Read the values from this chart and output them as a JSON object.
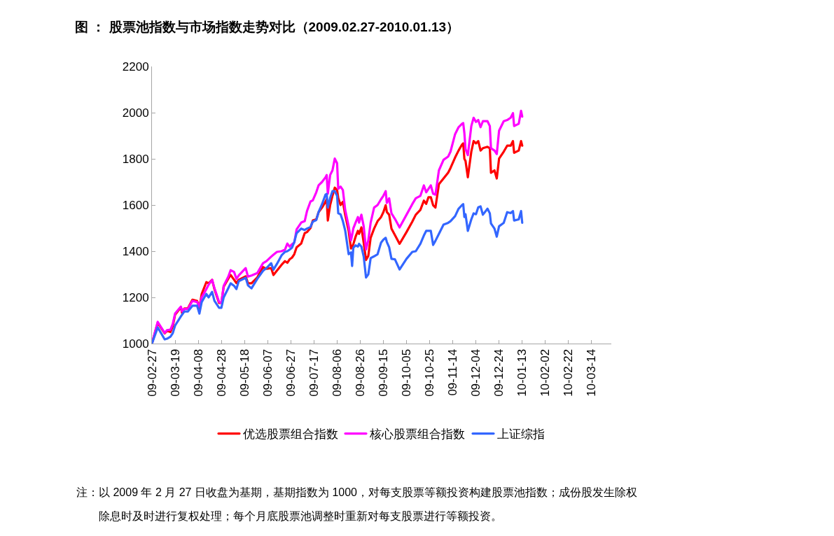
{
  "chart_data": {
    "type": "line",
    "title": "图 ： 股票池指数与市场指数走势对比（2009.02.27-2010.01.13）",
    "x": [
      "2009-02-27",
      "2009-03-04",
      "2009-03-10",
      "2009-03-12",
      "2009-03-15",
      "2009-03-17",
      "2009-03-19",
      "2009-03-24",
      "2009-03-25",
      "2009-03-27",
      "2009-03-30",
      "2009-04-03",
      "2009-04-07",
      "2009-04-09",
      "2009-04-11",
      "2009-04-15",
      "2009-04-17",
      "2009-04-20",
      "2009-04-22",
      "2009-04-26",
      "2009-04-28",
      "2009-04-30",
      "2009-05-04",
      "2009-05-06",
      "2009-05-09",
      "2009-05-11",
      "2009-05-13",
      "2009-05-19",
      "2009-05-21",
      "2009-05-24",
      "2009-05-29",
      "2009-06-03",
      "2009-06-06",
      "2009-06-10",
      "2009-06-12",
      "2009-06-15",
      "2009-06-19",
      "2009-06-22",
      "2009-06-24",
      "2009-06-26",
      "2009-06-28",
      "2009-06-30",
      "2009-07-02",
      "2009-07-06",
      "2009-07-09",
      "2009-07-11",
      "2009-07-14",
      "2009-07-16",
      "2009-07-19",
      "2009-07-21",
      "2009-07-24",
      "2009-07-27",
      "2009-07-28",
      "2009-07-29",
      "2009-07-31",
      "2009-08-02",
      "2009-08-04",
      "2009-08-06",
      "2009-08-07",
      "2009-08-09",
      "2009-08-11",
      "2009-08-13",
      "2009-08-16",
      "2009-08-18",
      "2009-08-19",
      "2009-08-20",
      "2009-08-22",
      "2009-08-24",
      "2009-08-25",
      "2009-08-27",
      "2009-08-29",
      "2009-08-31",
      "2009-09-02",
      "2009-09-04",
      "2009-09-07",
      "2009-09-10",
      "2009-09-13",
      "2009-09-15",
      "2009-09-17",
      "2009-09-18",
      "2009-09-20",
      "2009-09-22",
      "2009-09-25",
      "2009-09-29",
      "2009-10-05",
      "2009-10-10",
      "2009-10-13",
      "2009-10-17",
      "2009-10-20",
      "2009-10-22",
      "2009-10-24",
      "2009-10-26",
      "2009-10-28",
      "2009-10-30",
      "2009-11-02",
      "2009-11-06",
      "2009-11-10",
      "2009-11-12",
      "2009-11-16",
      "2009-11-19",
      "2009-11-22",
      "2009-11-23",
      "2009-11-24",
      "2009-11-25",
      "2009-11-27",
      "2009-11-30",
      "2009-12-02",
      "2009-12-04",
      "2009-12-06",
      "2009-12-08",
      "2009-12-10",
      "2009-12-14",
      "2009-12-16",
      "2009-12-17",
      "2009-12-20",
      "2009-12-22",
      "2009-12-24",
      "2009-12-28",
      "2009-12-31",
      "2010-01-03",
      "2010-01-05",
      "2010-01-06",
      "2010-01-10",
      "2010-01-12",
      "2010-01-13"
    ],
    "series": [
      {
        "name": "优选股票组合指数",
        "color": "#ff0000",
        "values": [
          1000,
          1090,
          1044,
          1055,
          1050,
          1075,
          1125,
          1157,
          1133,
          1152,
          1152,
          1190,
          1185,
          1155,
          1215,
          1266,
          1261,
          1276,
          1236,
          1176,
          1176,
          1246,
          1281,
          1297,
          1276,
          1262,
          1276,
          1291,
          1261,
          1261,
          1286,
          1331,
          1324,
          1327,
          1297,
          1316,
          1341,
          1357,
          1350,
          1365,
          1372,
          1387,
          1417,
          1433,
          1478,
          1483,
          1500,
          1533,
          1538,
          1569,
          1589,
          1614,
          1625,
          1533,
          1600,
          1640,
          1675,
          1665,
          1630,
          1600,
          1614,
          1558,
          1488,
          1412,
          1420,
          1430,
          1463,
          1488,
          1475,
          1503,
          1437,
          1362,
          1380,
          1458,
          1498,
          1530,
          1548,
          1569,
          1599,
          1570,
          1558,
          1498,
          1470,
          1432,
          1483,
          1528,
          1558,
          1579,
          1619,
          1605,
          1634,
          1634,
          1599,
          1589,
          1690,
          1715,
          1740,
          1760,
          1806,
          1836,
          1862,
          1867,
          1800,
          1791,
          1720,
          1831,
          1877,
          1867,
          1877,
          1836,
          1846,
          1852,
          1846,
          1740,
          1750,
          1715,
          1801,
          1831,
          1857,
          1857,
          1877,
          1826,
          1836,
          1877,
          1857
        ]
      },
      {
        "name": "核心股票组合指数",
        "color": "#ff00ff",
        "values": [
          1000,
          1094,
          1046,
          1058,
          1060,
          1085,
          1130,
          1160,
          1140,
          1150,
          1150,
          1185,
          1180,
          1160,
          1200,
          1236,
          1255,
          1276,
          1240,
          1180,
          1176,
          1250,
          1290,
          1318,
          1310,
          1280,
          1295,
          1327,
          1290,
          1295,
          1305,
          1348,
          1357,
          1376,
          1385,
          1397,
          1400,
          1407,
          1433,
          1420,
          1430,
          1437,
          1494,
          1524,
          1530,
          1574,
          1615,
          1620,
          1655,
          1685,
          1700,
          1720,
          1730,
          1649,
          1730,
          1750,
          1801,
          1781,
          1670,
          1680,
          1665,
          1579,
          1508,
          1447,
          1470,
          1498,
          1524,
          1548,
          1524,
          1558,
          1508,
          1407,
          1448,
          1523,
          1589,
          1600,
          1625,
          1640,
          1660,
          1609,
          1629,
          1564,
          1540,
          1503,
          1558,
          1604,
          1629,
          1640,
          1685,
          1655,
          1670,
          1685,
          1649,
          1645,
          1750,
          1796,
          1810,
          1831,
          1907,
          1937,
          1952,
          1955,
          1912,
          1842,
          1816,
          1942,
          1978,
          1960,
          1968,
          1937,
          1963,
          1963,
          1942,
          1846,
          1836,
          1821,
          1922,
          1963,
          1968,
          1978,
          1998,
          1942,
          1952,
          2008,
          1983
        ]
      },
      {
        "name": "上证综指",
        "color": "#3366ff",
        "values": [
          1000,
          1070,
          1018,
          1021,
          1030,
          1045,
          1078,
          1118,
          1125,
          1139,
          1139,
          1164,
          1164,
          1130,
          1180,
          1215,
          1200,
          1224,
          1185,
          1155,
          1155,
          1200,
          1240,
          1261,
          1250,
          1236,
          1270,
          1285,
          1252,
          1239,
          1280,
          1315,
          1327,
          1348,
          1320,
          1345,
          1382,
          1397,
          1400,
          1407,
          1415,
          1440,
          1478,
          1498,
          1492,
          1498,
          1505,
          1528,
          1535,
          1569,
          1604,
          1645,
          1648,
          1589,
          1630,
          1660,
          1660,
          1640,
          1564,
          1560,
          1530,
          1490,
          1387,
          1395,
          1336,
          1415,
          1425,
          1420,
          1432,
          1420,
          1377,
          1286,
          1300,
          1370,
          1378,
          1387,
          1437,
          1450,
          1458,
          1440,
          1417,
          1367,
          1365,
          1321,
          1367,
          1397,
          1400,
          1432,
          1468,
          1488,
          1488,
          1488,
          1427,
          1445,
          1475,
          1515,
          1523,
          1530,
          1552,
          1584,
          1600,
          1604,
          1548,
          1560,
          1488,
          1538,
          1564,
          1560,
          1590,
          1594,
          1558,
          1584,
          1564,
          1520,
          1498,
          1463,
          1508,
          1523,
          1569,
          1565,
          1574,
          1533,
          1538,
          1574,
          1523
        ]
      }
    ],
    "xlim": [
      "2009-02-27",
      "2010-03-31"
    ],
    "xticks": [
      {
        "value": "2009-02-27",
        "label": "09-02-27"
      },
      {
        "value": "2009-03-19",
        "label": "09-03-19"
      },
      {
        "value": "2009-04-08",
        "label": "09-04-08"
      },
      {
        "value": "2009-04-28",
        "label": "09-04-28"
      },
      {
        "value": "2009-05-18",
        "label": "09-05-18"
      },
      {
        "value": "2009-06-07",
        "label": "09-06-07"
      },
      {
        "value": "2009-06-27",
        "label": "09-06-27"
      },
      {
        "value": "2009-07-17",
        "label": "09-07-17"
      },
      {
        "value": "2009-08-06",
        "label": "09-08-06"
      },
      {
        "value": "2009-08-26",
        "label": "09-08-26"
      },
      {
        "value": "2009-09-15",
        "label": "09-09-15"
      },
      {
        "value": "2009-10-05",
        "label": "09-10-05"
      },
      {
        "value": "2009-10-25",
        "label": "09-10-25"
      },
      {
        "value": "2009-11-14",
        "label": "09-11-14"
      },
      {
        "value": "2009-12-04",
        "label": "09-12-04"
      },
      {
        "value": "2009-12-24",
        "label": "09-12-24"
      },
      {
        "value": "2010-01-13",
        "label": "10-01-13"
      },
      {
        "value": "2010-02-02",
        "label": "10-02-02"
      },
      {
        "value": "2010-02-22",
        "label": "10-02-22"
      },
      {
        "value": "2010-03-14",
        "label": "10-03-14"
      }
    ],
    "ylim": [
      1000,
      2200
    ],
    "yticks": [
      1000,
      1200,
      1400,
      1600,
      1800,
      2000,
      2200
    ],
    "grid": false,
    "legend": "bottom",
    "annotations": [
      "注：以 2009 年 2 月 27 日收盘为基期，基期指数为 1000，对每支股票等额投资构建股票池指数；成份股发生除权除息时及时进行复权处理；每个月底股票池调整时重新对每支股票进行等额投资。"
    ]
  }
}
